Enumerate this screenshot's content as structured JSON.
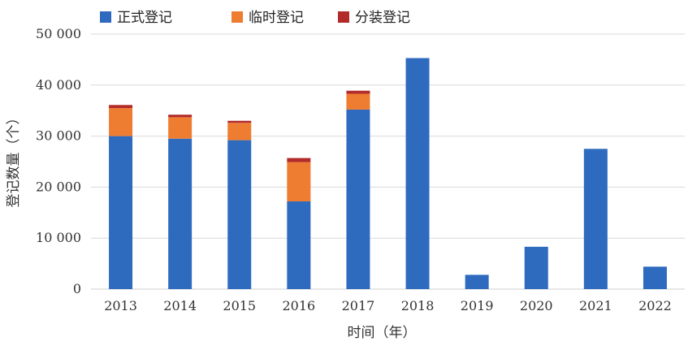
{
  "chart_data": {
    "type": "bar",
    "stacked": true,
    "categories": [
      "2013",
      "2014",
      "2015",
      "2016",
      "2017",
      "2018",
      "2019",
      "2020",
      "2021",
      "2022"
    ],
    "series": [
      {
        "name": "正式登记",
        "color": "#2e6bbf",
        "values": [
          30000,
          29500,
          29200,
          17200,
          35200,
          45300,
          2800,
          8300,
          27500,
          4400
        ]
      },
      {
        "name": "临时登记",
        "color": "#ee7d31",
        "values": [
          5500,
          4200,
          3400,
          7700,
          3100,
          0,
          0,
          0,
          0,
          0
        ]
      },
      {
        "name": "分装登记",
        "color": "#b22a2a",
        "values": [
          600,
          500,
          400,
          800,
          600,
          0,
          0,
          0,
          0,
          0
        ]
      }
    ],
    "xlabel": "时间（年）",
    "ylabel": "登记数量（个）",
    "ylim": [
      0,
      50000
    ],
    "yticks": [
      0,
      10000,
      20000,
      30000,
      40000,
      50000
    ],
    "ytick_labels": [
      "0",
      "10 000",
      "20 000",
      "30 000",
      "40 000",
      "50 000"
    ],
    "grid": true,
    "legend": "top-left"
  }
}
